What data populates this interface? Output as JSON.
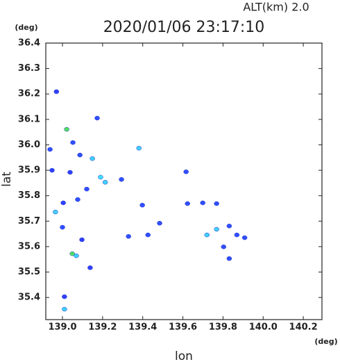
{
  "chart_data": {
    "type": "scatter",
    "title": "2020/01/06 23:17:10",
    "subtitle": "ALT(km)  2.0",
    "x_label": "lon",
    "y_label": "lat",
    "x_unit": "(deg)",
    "y_unit": "(deg)",
    "x": [
      138.97,
      139.021,
      138.938,
      138.948,
      139.038,
      139.004,
      138.965,
      139.0,
      139.076,
      139.049,
      139.069,
      139.097,
      139.138,
      139.149,
      139.19,
      139.173,
      139.381,
      139.329,
      139.398,
      139.484,
      139.426,
      139.616,
      139.699,
      139.623,
      139.768,
      139.831,
      139.803,
      139.869,
      139.831,
      139.768,
      139.01,
      139.01,
      139.087,
      139.052,
      139.213,
      139.121,
      139.294,
      139.72,
      139.908
    ],
    "y": [
      36.209,
      36.061,
      35.982,
      35.9,
      35.892,
      35.772,
      35.736,
      35.676,
      35.785,
      35.572,
      35.564,
      35.627,
      35.517,
      35.946,
      35.873,
      36.105,
      35.987,
      35.64,
      35.763,
      35.692,
      35.646,
      35.894,
      35.772,
      35.769,
      35.769,
      35.681,
      35.599,
      35.646,
      35.553,
      35.668,
      35.403,
      35.354,
      35.96,
      36.009,
      35.853,
      35.826,
      35.864,
      35.646,
      35.635
    ],
    "colors": [
      "#3040ff",
      "#50e060",
      "#3050ff",
      "#3040ff",
      "#3040ff",
      "#3040ff",
      "#40d0ff",
      "#3050ff",
      "#3050ff",
      "#50e060",
      "#40d0ff",
      "#3040ff",
      "#3040ff",
      "#40d0ff",
      "#40e0ff",
      "#3050ff",
      "#40d0ff",
      "#3050ff",
      "#3050ff",
      "#3050ff",
      "#3050ff",
      "#3050ff",
      "#3050ff",
      "#3050ff",
      "#3050ff",
      "#3050ff",
      "#3050ff",
      "#3050ff",
      "#3050ff",
      "#40d0ff",
      "#3040ff",
      "#40d0ff",
      "#3050ff",
      "#3050ff",
      "#40d0ff",
      "#3050ff",
      "#3050ff",
      "#40d0ff",
      "#3050ff"
    ],
    "xlim": [
      138.917,
      140.293
    ],
    "ylim": [
      35.313,
      36.4
    ],
    "xticks": [
      {
        "value": 139,
        "label": "139.0"
      },
      139.2,
      139.4,
      139.6,
      139.8,
      {
        "value": 140,
        "label": "140.0"
      },
      140.2
    ],
    "yticks": [
      35.4,
      35.5,
      35.6,
      35.7,
      35.8,
      35.9,
      {
        "value": 36,
        "label": "36.0"
      },
      36.1,
      36.2,
      36.3,
      36.4
    ]
  }
}
